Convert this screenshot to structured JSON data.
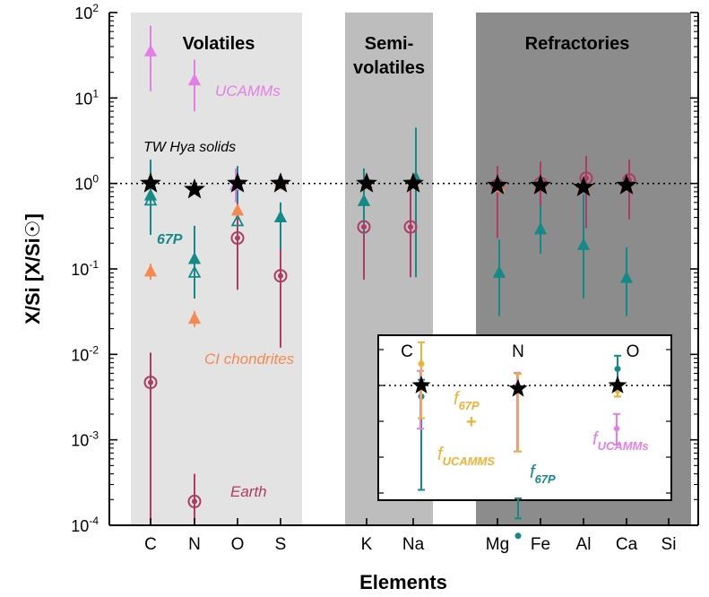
{
  "chart_data": {
    "type": "scatter",
    "xlabel": "Elements",
    "ylabel": "X/Si  [X/Si☉]",
    "yscale": "log",
    "ylim": [
      0.0001,
      100
    ],
    "y_ticks": [
      {
        "base": "10",
        "exp": "2"
      },
      {
        "base": "10",
        "exp": "1"
      },
      {
        "base": "10",
        "exp": "0"
      },
      {
        "base": "10",
        "exp": "-1"
      },
      {
        "base": "10",
        "exp": "-2"
      },
      {
        "base": "10",
        "exp": "-3"
      },
      {
        "base": "10",
        "exp": "-4"
      }
    ],
    "categories": [
      "C",
      "N",
      "O",
      "S",
      "K",
      "Na",
      "Mg",
      "Fe",
      "Al",
      "Ca",
      "Si"
    ],
    "reference_line": 1.0,
    "grid": false,
    "bands": [
      {
        "label": "Volatiles",
        "color": "#e3e3e3"
      },
      {
        "label_line1": "Semi-",
        "label_line2": "volatiles",
        "color": "#bdbdbd"
      },
      {
        "label": "Refractories",
        "color": "#8c8c8c"
      }
    ],
    "series": [
      {
        "name": "TW Hya solids",
        "color": "#000000",
        "marker": "star",
        "points": [
          {
            "x": "C",
            "y": 1.0,
            "lo": 1.0,
            "hi": 1.0
          },
          {
            "x": "N",
            "y": 0.85,
            "lo": 0.85,
            "hi": 0.85
          },
          {
            "x": "O",
            "y": 1.0,
            "lo": 1.0,
            "hi": 1.0
          },
          {
            "x": "S",
            "y": 1.0,
            "lo": 1.0,
            "hi": 1.0
          },
          {
            "x": "K",
            "y": 1.0,
            "lo": 1.0,
            "hi": 1.0
          },
          {
            "x": "Na",
            "y": 1.0,
            "lo": 1.0,
            "hi": 1.0
          },
          {
            "x": "Mg",
            "y": 0.95,
            "lo": 0.95,
            "hi": 0.95
          },
          {
            "x": "Fe",
            "y": 0.95,
            "lo": 0.95,
            "hi": 0.95
          },
          {
            "x": "Al",
            "y": 0.9,
            "lo": 0.9,
            "hi": 0.9
          },
          {
            "x": "Ca",
            "y": 0.95,
            "lo": 0.95,
            "hi": 0.95
          }
        ]
      },
      {
        "name": "UCAMMs",
        "color": "#e67de6",
        "marker": "triangle",
        "points": [
          {
            "x": "C",
            "y": 35,
            "lo": 12,
            "hi": 70
          },
          {
            "x": "N",
            "y": 16,
            "lo": 7,
            "hi": 28
          },
          {
            "x": "O",
            "y": 0.95,
            "lo": 0.6,
            "hi": 1.5
          }
        ]
      },
      {
        "name": "CI chondrites",
        "color": "#f5894f",
        "marker": "triangle",
        "points": [
          {
            "x": "C",
            "y": 0.093,
            "lo": 0.075,
            "hi": 0.115
          },
          {
            "x": "N",
            "y": 0.026,
            "lo": 0.021,
            "hi": 0.032
          },
          {
            "x": "O",
            "y": 0.48,
            "lo": 0.4,
            "hi": 0.56
          },
          {
            "x": "S",
            "y": 1.05,
            "lo": 0.85,
            "hi": 1.25
          },
          {
            "x": "K",
            "y": 1.0,
            "lo": 0.9,
            "hi": 1.1
          },
          {
            "x": "Na",
            "y": 1.0,
            "lo": 0.9,
            "hi": 1.1
          },
          {
            "x": "Mg",
            "y": 0.9,
            "lo": 0.8,
            "hi": 1.0
          },
          {
            "x": "Fe",
            "y": 0.95,
            "lo": 0.85,
            "hi": 1.05
          },
          {
            "x": "Al",
            "y": 0.95,
            "lo": 0.85,
            "hi": 1.05
          },
          {
            "x": "Ca",
            "y": 0.95,
            "lo": 0.85,
            "hi": 1.05
          }
        ]
      },
      {
        "name": "67P",
        "color": "#138a87",
        "marker": "triangle",
        "points": [
          {
            "x": "C",
            "y": 0.72,
            "lo": 0.25,
            "hi": 1.9
          },
          {
            "x": "N",
            "y": 0.13,
            "lo": 0.06,
            "hi": 0.32
          },
          {
            "x": "O",
            "y": 0.95,
            "lo": 0.6,
            "hi": 1.6
          },
          {
            "x": "S",
            "y": 0.4,
            "lo": 0.17,
            "hi": 0.6
          },
          {
            "x": "K",
            "y": 0.62,
            "lo": 0.25,
            "hi": 1.5
          },
          {
            "x": "Na",
            "y": 1.15,
            "lo": 0.08,
            "hi": 4.5
          },
          {
            "x": "Mg",
            "y": 0.09,
            "lo": 0.028,
            "hi": 0.22
          },
          {
            "x": "Fe",
            "y": 0.29,
            "lo": 0.15,
            "hi": 0.55
          },
          {
            "x": "Al",
            "y": 0.19,
            "lo": 0.045,
            "hi": 0.75
          },
          {
            "x": "Ca",
            "y": 0.078,
            "lo": 0.028,
            "hi": 0.18
          }
        ]
      },
      {
        "name": "67P (open)",
        "color": "#138a87",
        "marker": "triangle-open",
        "points": [
          {
            "x": "C",
            "y": 0.63,
            "lo": 0.63,
            "hi": 0.63
          },
          {
            "x": "N",
            "y": 0.09,
            "lo": 0.045,
            "hi": 0.2
          },
          {
            "x": "O",
            "y": 0.36,
            "lo": 0.36,
            "hi": 0.36
          }
        ]
      },
      {
        "name": "Earth",
        "color": "#b03a62",
        "marker": "circle-dot",
        "points": [
          {
            "x": "C",
            "y": 0.0047,
            "lo": 0.0001,
            "hi": 0.0105
          },
          {
            "x": "N",
            "y": 0.00019,
            "lo": 0.0001,
            "hi": 0.0004
          },
          {
            "x": "O",
            "y": 0.23,
            "lo": 0.057,
            "hi": 0.95
          },
          {
            "x": "S",
            "y": 0.083,
            "lo": 0.012,
            "hi": 0.32
          },
          {
            "x": "K",
            "y": 0.31,
            "lo": 0.075,
            "hi": 0.85
          },
          {
            "x": "Na",
            "y": 0.31,
            "lo": 0.08,
            "hi": 1.1
          },
          {
            "x": "Mg",
            "y": 0.95,
            "lo": 0.23,
            "hi": 1.6
          },
          {
            "x": "Fe",
            "y": 1.0,
            "lo": 0.35,
            "hi": 1.8
          },
          {
            "x": "Al",
            "y": 1.15,
            "lo": 0.3,
            "hi": 2.1
          },
          {
            "x": "Ca",
            "y": 1.1,
            "lo": 0.38,
            "hi": 1.9
          }
        ]
      }
    ],
    "annotations": [
      {
        "text": "UCAMMs",
        "color": "#e67de6"
      },
      {
        "text": "TW Hya solids",
        "color": "#000000"
      },
      {
        "text": "67P",
        "color": "#138a87"
      },
      {
        "text": "CI chondrites",
        "color": "#f5894f"
      },
      {
        "text": "Earth",
        "color": "#b03a62"
      }
    ],
    "inset": {
      "categories": [
        "C",
        "N",
        "O"
      ],
      "reference_line": 1.0,
      "series": [
        {
          "name": "TW Hya solids",
          "color": "#000000",
          "marker": "star",
          "points": [
            {
              "x": "C",
              "y": 1.0
            },
            {
              "x": "N",
              "y": 0.9
            },
            {
              "x": "O",
              "y": 1.0
            }
          ]
        },
        {
          "name": "f_UCAMMS",
          "color": "#f2b134",
          "marker": "dot",
          "points": [
            {
              "x": "C",
              "y": 2.0,
              "lo": 0.35,
              "hi": 4.0
            },
            {
              "x": "N",
              "y": 0.85,
              "lo": 0.12,
              "hi": 1.45
            },
            {
              "x": "O",
              "y": 0.85,
              "lo": 0.7,
              "hi": 1.0
            }
          ]
        },
        {
          "name": "f_67P + f_UCAMMS",
          "color": "#e67de6",
          "marker": "dash",
          "points": [
            {
              "x": "C",
              "y": 1.0,
              "lo": 0.25,
              "hi": 1.6
            },
            {
              "x": "N",
              "y": 1.0,
              "lo": 0.12,
              "hi": 1.5
            },
            {
              "x": "O",
              "y": 0.25,
              "lo": 0.15,
              "hi": 0.4
            }
          ]
        },
        {
          "name": "f_67P",
          "color": "#138a87",
          "marker": "dot",
          "points": [
            {
              "x": "C",
              "y": 0.7,
              "lo": 0.035,
              "hi": 1.2
            },
            {
              "x": "N",
              "y": 0.008,
              "lo": 0.004,
              "hi": 0.014
            },
            {
              "x": "O",
              "y": 1.7,
              "lo": 0.7,
              "hi": 2.6
            }
          ]
        }
      ],
      "labels": [
        {
          "base": "f",
          "sub": "67P",
          "extra": "+",
          "color": "#f2b134"
        },
        {
          "base": "f",
          "sub": "UCAMMS",
          "color": "#f2b134"
        },
        {
          "base": "f",
          "sub": "67P",
          "color": "#138a87"
        },
        {
          "base": "f",
          "sub": "UCAMMs",
          "color": "#e67de6"
        }
      ]
    }
  }
}
